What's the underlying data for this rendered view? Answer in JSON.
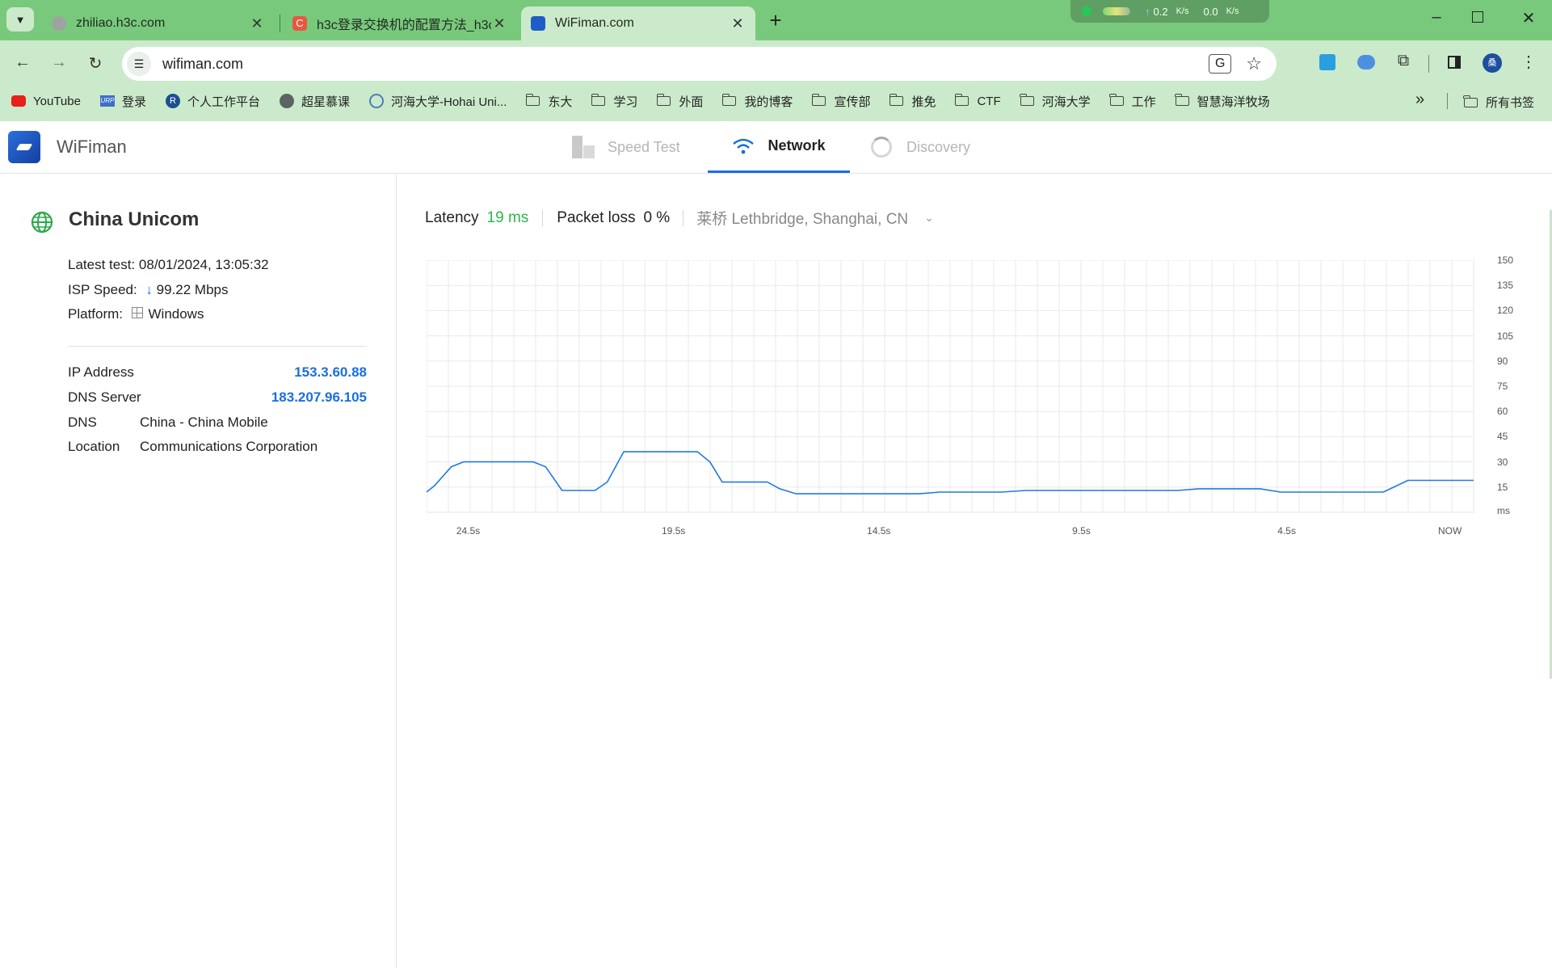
{
  "browser": {
    "tabs": [
      {
        "title": "zhiliao.h3c.com",
        "active": false
      },
      {
        "title": "h3c登录交换机的配置方法_h3c",
        "active": false
      },
      {
        "title": "WiFiman.com",
        "active": true
      }
    ],
    "new_tab_glyph": "+",
    "net_monitor": {
      "upload": "0.2",
      "upload_unit": "K/s",
      "download": "0.0",
      "download_unit": "K/s"
    },
    "url": "wifiman.com",
    "profile_initial": "桑",
    "bookmarks": [
      {
        "label": "YouTube",
        "icon": "youtube-icon"
      },
      {
        "label": "登录",
        "icon": "urp-icon"
      },
      {
        "label": "个人工作平台",
        "icon": "r-icon"
      },
      {
        "label": "超星慕课",
        "icon": "globe-icon"
      },
      {
        "label": "河海大学-Hohai Uni...",
        "icon": "hohai-icon"
      },
      {
        "label": "东大",
        "icon": "folder-icon"
      },
      {
        "label": "学习",
        "icon": "folder-icon"
      },
      {
        "label": "外面",
        "icon": "folder-icon"
      },
      {
        "label": "我的博客",
        "icon": "folder-icon"
      },
      {
        "label": "宣传部",
        "icon": "folder-icon"
      },
      {
        "label": "推免",
        "icon": "folder-icon"
      },
      {
        "label": "CTF",
        "icon": "folder-icon"
      },
      {
        "label": "河海大学",
        "icon": "folder-icon"
      },
      {
        "label": "工作",
        "icon": "folder-icon"
      },
      {
        "label": "智慧海洋牧场",
        "icon": "folder-icon"
      }
    ],
    "all_bookmarks": "所有书签",
    "colors": {
      "frame": "#79c97c",
      "toolbar": "#cbeacb"
    }
  },
  "app": {
    "name": "WiFiman",
    "nav": {
      "speed_test": "Speed Test",
      "network": "Network",
      "discovery": "Discovery"
    },
    "accent": "#1a6fe0"
  },
  "isp": {
    "name": "China Unicom",
    "latest_test_label": "Latest test:",
    "latest_test_value": "08/01/2024, 13:05:32",
    "isp_speed_label": "ISP Speed:",
    "isp_speed_value": "99.22 Mbps",
    "platform_label": "Platform:",
    "platform_value": "Windows",
    "ip_label": "IP Address",
    "ip_value": "153.3.60.88",
    "dns_server_label": "DNS Server",
    "dns_server_value": "183.207.96.105",
    "dns_label": "DNS",
    "dns_value": "China - China Mobile",
    "location_label": "Location",
    "location_value": "Communications Corporation"
  },
  "network": {
    "latency_label": "Latency",
    "latency_value": "19 ms",
    "packet_loss_label": "Packet loss",
    "packet_loss_value": "0 %",
    "server": "莱桥 Lethbridge, Shanghai, CN"
  },
  "chart_data": {
    "type": "line",
    "title": "",
    "ylabel": "ms",
    "ylim": [
      0,
      150
    ],
    "yticks": [
      150,
      135,
      120,
      105,
      90,
      75,
      60,
      45,
      30,
      15
    ],
    "y_unit_label": "ms",
    "xlim": [
      -25.5,
      0
    ],
    "xtick_labels": [
      {
        "x": -24.5,
        "label": "24.5s"
      },
      {
        "x": -19.5,
        "label": "19.5s"
      },
      {
        "x": -14.5,
        "label": "14.5s"
      },
      {
        "x": -9.5,
        "label": "9.5s"
      },
      {
        "x": -4.5,
        "label": "4.5s"
      },
      {
        "x": 0,
        "label": "NOW"
      }
    ],
    "series": [
      {
        "name": "Latency",
        "x": [
          -25.5,
          -25.3,
          -24.9,
          -24.6,
          -22.9,
          -22.6,
          -22.2,
          -21.4,
          -21.1,
          -20.7,
          -18.9,
          -18.6,
          -18.3,
          -17.2,
          -16.9,
          -16.5,
          -15.4,
          -13.5,
          -13.0,
          -11.5,
          -10.9,
          -7.2,
          -6.7,
          -5.2,
          -4.7,
          -2.2,
          -1.6,
          0
        ],
        "values": [
          12,
          16,
          27,
          30,
          30,
          27,
          13,
          13,
          18,
          36,
          36,
          30,
          18,
          18,
          14,
          11,
          11,
          11,
          12,
          12,
          13,
          13,
          14,
          14,
          12,
          12,
          19,
          19
        ]
      }
    ]
  }
}
